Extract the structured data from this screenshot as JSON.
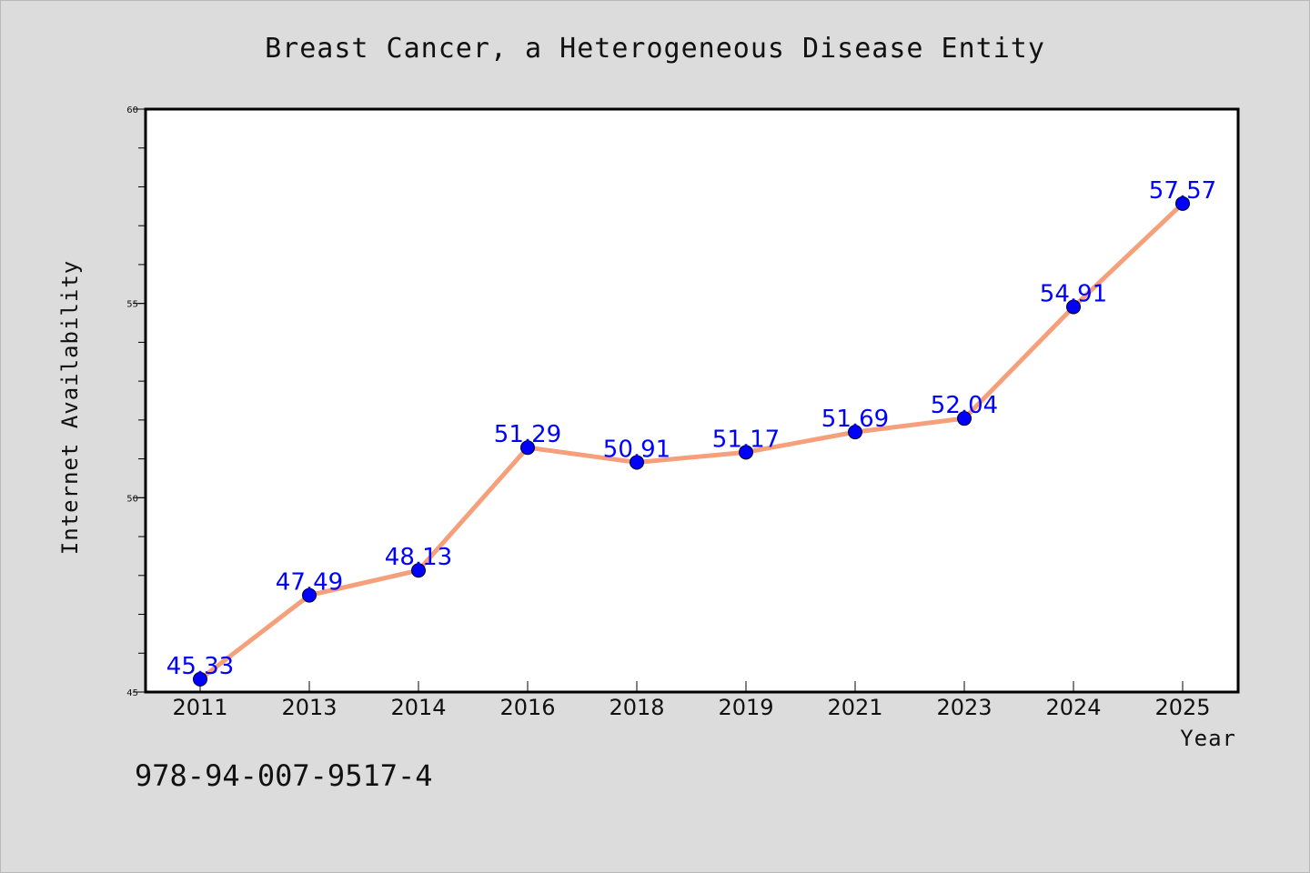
{
  "chart_data": {
    "type": "line",
    "title": "Breast Cancer, a Heterogeneous Disease Entity",
    "xlabel": "Year",
    "ylabel": "Internet Availability",
    "categories": [
      "2011",
      "2013",
      "2014",
      "2016",
      "2018",
      "2019",
      "2021",
      "2023",
      "2024",
      "2025"
    ],
    "values": [
      45.33,
      47.49,
      48.13,
      51.29,
      50.91,
      51.17,
      51.69,
      52.04,
      54.91,
      57.57
    ],
    "data_labels": [
      "45.33",
      "47.49",
      "48.13",
      "51.29",
      "50.91",
      "51.17",
      "51.69",
      "52.04",
      "54.91",
      "57.57"
    ],
    "ylim": [
      45,
      60
    ],
    "yticks": [
      45,
      50,
      55,
      60
    ],
    "ytick_labels": [
      "45",
      "50",
      "55",
      "60"
    ],
    "grid": false,
    "line_color": "#f5a07a",
    "marker_color": "#0000ff",
    "label_color": "#0000ff"
  },
  "footer": {
    "isbn": "978-94-007-9517-4"
  }
}
